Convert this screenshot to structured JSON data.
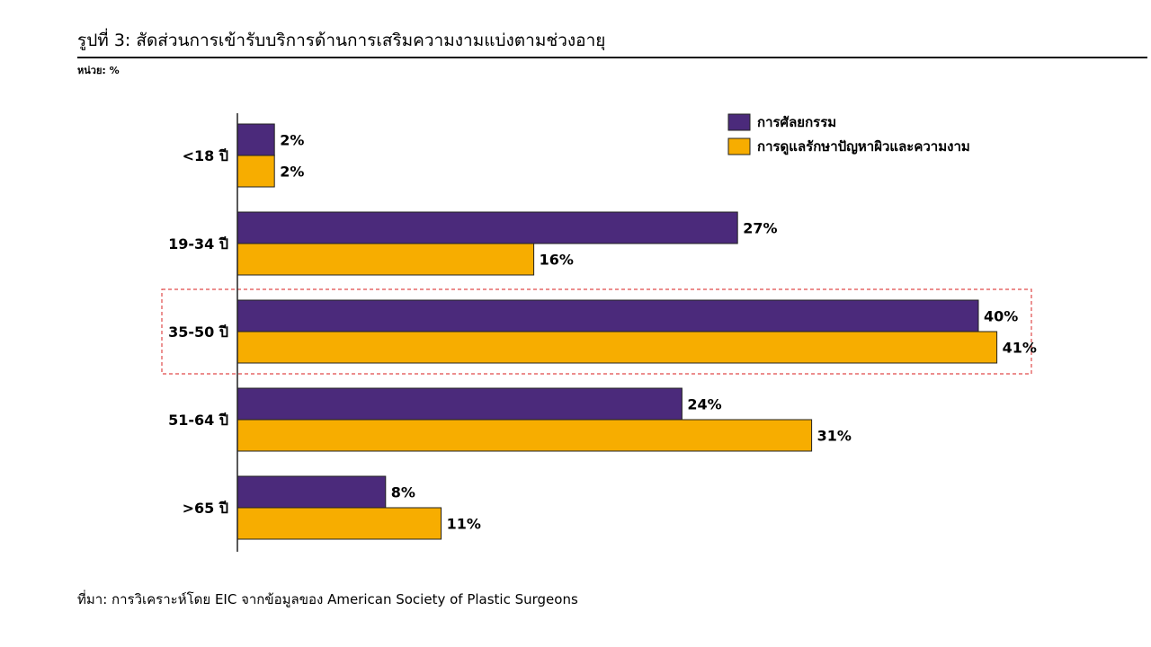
{
  "header": {
    "title": "รูปที่ 3: สัดส่วนการเข้ารับบริการด้านการเสริมความงามแบ่งตามช่วงอายุ",
    "unit": "หน่วย: %"
  },
  "footer": {
    "source": "ที่มา: การวิเคราะห์โดย EIC จากข้อมูลของ American Society of Plastic Surgeons"
  },
  "chart_data": {
    "type": "bar",
    "orientation": "horizontal",
    "categories": [
      "<18 ปี",
      "19-34 ปี",
      "35-50 ปี",
      "51-64 ปี",
      ">65 ปี"
    ],
    "series": [
      {
        "name": "การศัลยกรรม",
        "color": "#4b2a7b",
        "values": [
          2,
          27,
          40,
          24,
          8
        ],
        "labels": [
          "2%",
          "27%",
          "40%",
          "24%",
          "8%"
        ]
      },
      {
        "name": "การดูแลรักษาปัญหาผิวและความงาม",
        "color": "#f7ad00",
        "values": [
          2,
          16,
          41,
          31,
          11
        ],
        "labels": [
          "2%",
          "16%",
          "41%",
          "31%",
          "11%"
        ]
      }
    ],
    "highlighted_category": "35-50 ปี",
    "xlim": [
      0,
      45
    ],
    "legend_position": "top-right",
    "grid": false,
    "title": "",
    "xlabel": "",
    "ylabel": ""
  }
}
